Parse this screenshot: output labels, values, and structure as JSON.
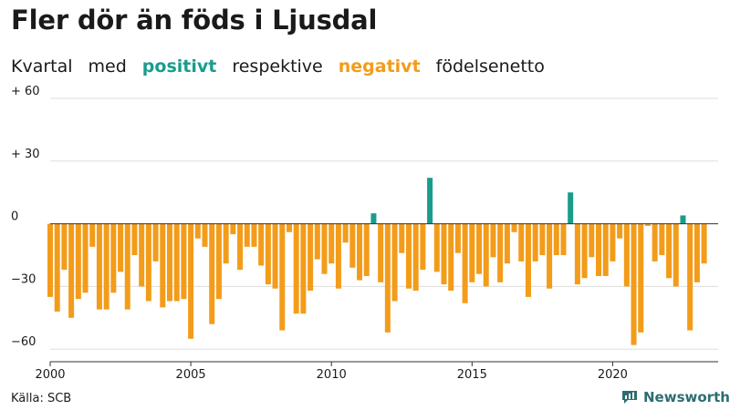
{
  "header": {
    "title": "Fler dör än föds i Ljusdal",
    "subtitle": {
      "part1": "Kvartal",
      "part2": "med",
      "positive_word": "positivt",
      "part3": "respektive",
      "negative_word": "negativt",
      "part4": "födelsenetto"
    }
  },
  "footer": {
    "source": "Källa: SCB",
    "brand": "Newsworthy"
  },
  "colors": {
    "positive": "#1a9c8c",
    "negative": "#f39c1a",
    "brand": "#2d6d70"
  },
  "chart_data": {
    "type": "bar",
    "title": "Fler dör än föds i Ljusdal",
    "ylim": [
      -66,
      60
    ],
    "yticks": [
      60,
      30,
      0,
      -30,
      -60
    ],
    "ytick_labels": [
      "+ 60",
      "+ 30",
      "0",
      "−30",
      "−60"
    ],
    "xticks": [
      2000,
      2005,
      2010,
      2015,
      2020
    ],
    "x_start": 2000,
    "x_end": 2023.75,
    "quarters_per_year": 4,
    "values": [
      -35,
      -42,
      -22,
      -45,
      -36,
      -33,
      -11,
      -41,
      -41,
      -33,
      -23,
      -41,
      -15,
      -30,
      -37,
      -18,
      -40,
      -37,
      -37,
      -36,
      -55,
      -7,
      -11,
      -48,
      -36,
      -19,
      -5,
      -22,
      -11,
      -11,
      -20,
      -29,
      -31,
      -51,
      -4,
      -43,
      -43,
      -32,
      -17,
      -24,
      -19,
      -31,
      -9,
      -21,
      -27,
      -25,
      5,
      -28,
      -52,
      -37,
      -14,
      -31,
      -32,
      -22,
      22,
      -23,
      -29,
      -32,
      -14,
      -38,
      -28,
      -24,
      -30,
      -16,
      -28,
      -19,
      -4,
      -18,
      -35,
      -18,
      -15,
      -31,
      -15,
      -15,
      15,
      -29,
      -26,
      -16,
      -25,
      -25,
      -18,
      -7,
      -30,
      -58,
      -52,
      -1,
      -18,
      -15,
      -26,
      -30,
      4,
      -51,
      -28,
      -19
    ]
  }
}
